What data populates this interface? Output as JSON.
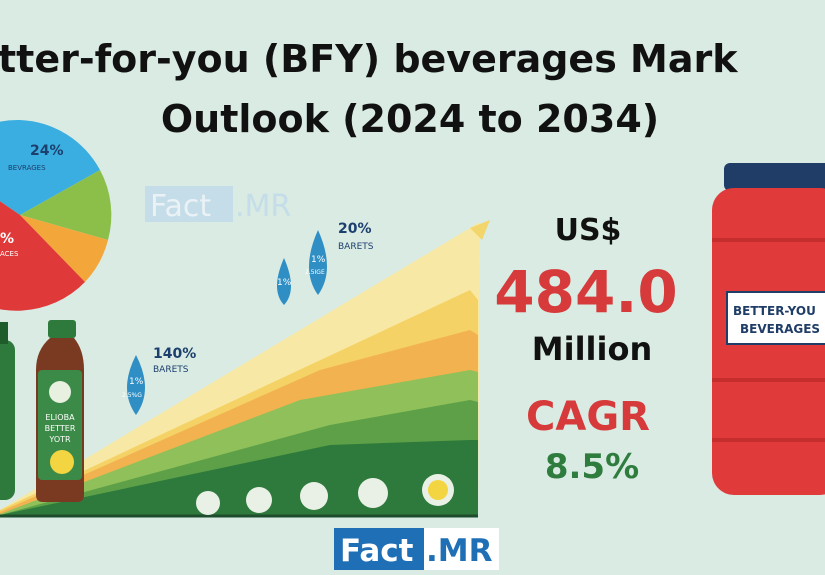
{
  "title": {
    "line1": "tter-for-you (BFY) beverages Mark",
    "line2": "Outlook (2024 to 2034)"
  },
  "pie_labels": [
    "24%",
    "BEVRAGES",
    "%",
    "ACES"
  ],
  "callouts": [
    {
      "value": "20%",
      "label": "BARETS"
    },
    {
      "value": "140%",
      "label": "BARETS"
    }
  ],
  "drops": [
    "1%",
    "1%",
    "2.5IGE",
    "1%",
    "2.5%G"
  ],
  "bottle_label": [
    "ELIOBA",
    "BETTER",
    "YOTR"
  ],
  "jar_label": [
    "BETTER-YOU",
    "BEVERAGES"
  ],
  "stat": {
    "currency": "US$",
    "value": "484.0",
    "unit": "Million",
    "cagr_label": "CAGR",
    "cagr": "8.5%"
  },
  "watermark": {
    "left": "Fact",
    "right": ".MR"
  },
  "logo": {
    "left": "Fact",
    "right": ".MR"
  }
}
